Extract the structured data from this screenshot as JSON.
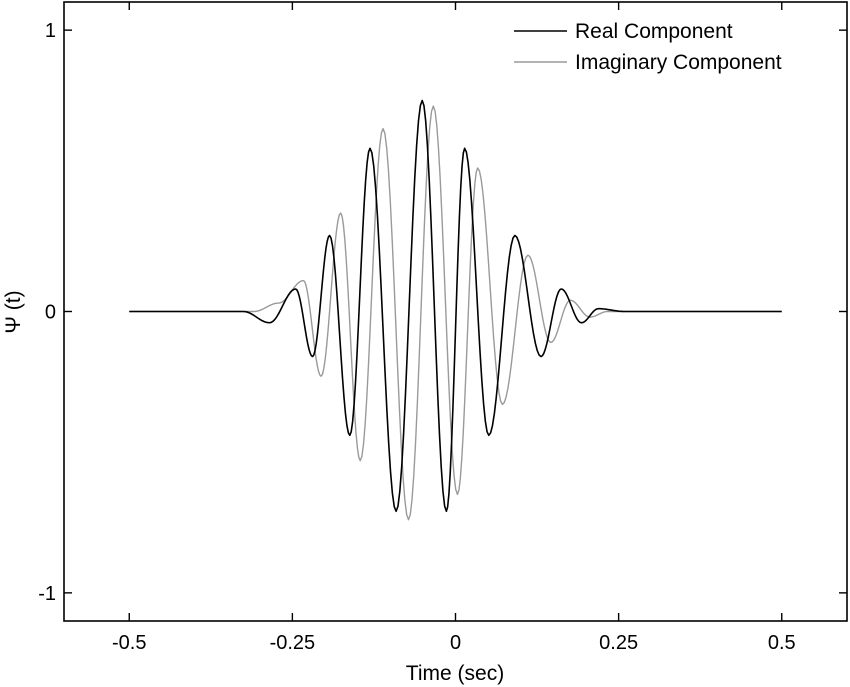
{
  "chart_data": {
    "type": "line",
    "title": "",
    "xlabel": "Time (sec)",
    "ylabel": "Ψ (t)",
    "xlim": [
      -0.6,
      0.6
    ],
    "ylim": [
      -1.1,
      1.1
    ],
    "x_ticks": [
      -0.5,
      -0.25,
      0,
      0.25,
      0.5
    ],
    "x_tick_labels": [
      "-0.5",
      "-0.25",
      "0",
      "0.25",
      "0.5"
    ],
    "y_ticks": [
      -1,
      0,
      1
    ],
    "y_tick_labels": [
      "-1",
      "0",
      "1"
    ],
    "grid": false,
    "legend_position": "top-right",
    "x_range": [
      -0.5,
      0.5
    ],
    "series": [
      {
        "name": "Real Component",
        "color": "#000000",
        "style": "solid",
        "extrema": [
          [
            -0.285,
            -0.04
          ],
          [
            -0.245,
            0.08
          ],
          [
            -0.219,
            -0.16
          ],
          [
            -0.193,
            0.27
          ],
          [
            -0.162,
            -0.44
          ],
          [
            -0.131,
            0.58
          ],
          [
            -0.091,
            -0.71
          ],
          [
            -0.051,
            0.75
          ],
          [
            -0.014,
            -0.71
          ],
          [
            0.014,
            0.58
          ],
          [
            0.051,
            -0.44
          ],
          [
            0.091,
            0.27
          ],
          [
            0.131,
            -0.16
          ],
          [
            0.162,
            0.08
          ],
          [
            0.193,
            -0.04
          ],
          [
            0.219,
            0.01
          ]
        ]
      },
      {
        "name": "Imaginary Component",
        "color": "#9a9a9a",
        "style": "solid",
        "extrema": [
          [
            -0.271,
            0.03
          ],
          [
            -0.233,
            0.11
          ],
          [
            -0.206,
            -0.23
          ],
          [
            -0.176,
            0.35
          ],
          [
            -0.146,
            -0.53
          ],
          [
            -0.111,
            0.65
          ],
          [
            -0.072,
            -0.74
          ],
          [
            -0.034,
            0.73
          ],
          [
            0.003,
            -0.65
          ],
          [
            0.034,
            0.51
          ],
          [
            0.072,
            -0.33
          ],
          [
            0.111,
            0.2
          ],
          [
            0.146,
            -0.11
          ],
          [
            0.176,
            0.04
          ],
          [
            0.206,
            -0.02
          ],
          [
            0.233,
            0.0
          ]
        ]
      }
    ]
  }
}
